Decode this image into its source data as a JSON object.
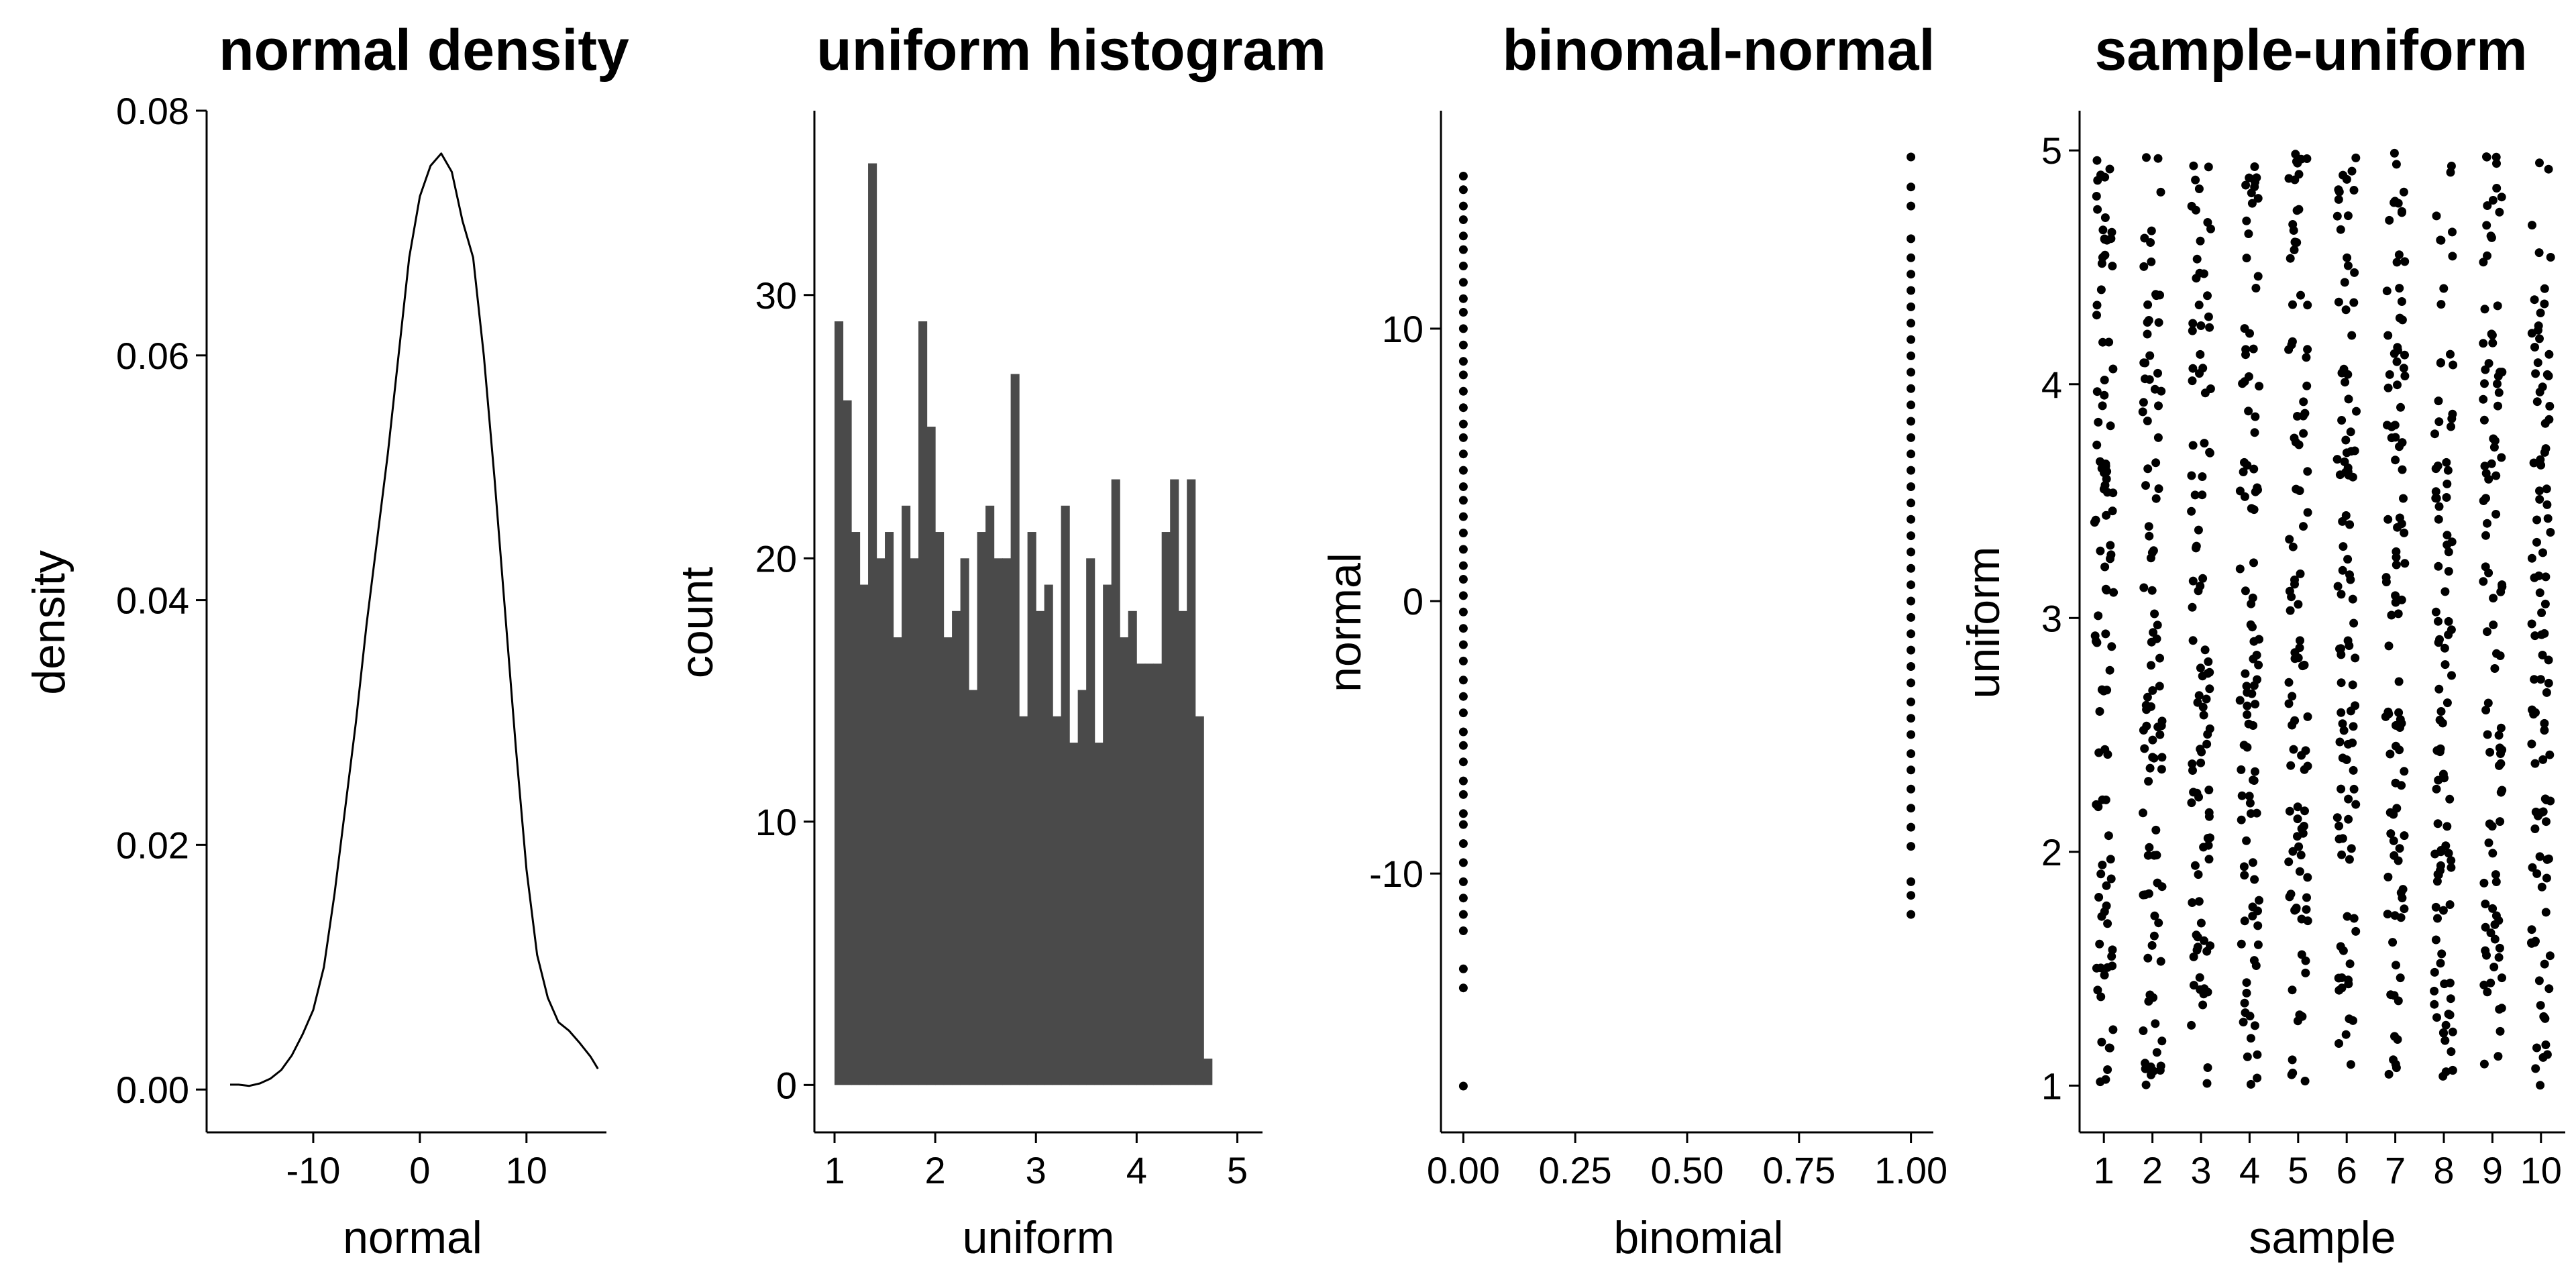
{
  "chart_data": [
    {
      "type": "line",
      "title": "normal density",
      "xlabel": "normal",
      "ylabel": "density",
      "xlim": [
        -20,
        17.5
      ],
      "ylim": [
        -0.0035,
        0.08
      ],
      "xticks": [
        -10,
        0,
        10
      ],
      "xtick_labels": [
        "-10",
        "0",
        "10"
      ],
      "yticks": [
        0,
        0.02,
        0.04,
        0.06,
        0.08
      ],
      "ytick_labels": [
        "0.00",
        "0.02",
        "0.04",
        "0.06",
        "0.08"
      ],
      "grid": false,
      "series": [
        {
          "x": [
            -17.8,
            -17,
            -16,
            -15,
            -14,
            -13,
            -12,
            -11,
            -10,
            -9,
            -8,
            -7,
            -6,
            -5,
            -4,
            -3,
            -2,
            -1,
            0,
            1,
            2,
            3,
            4,
            5,
            6,
            7,
            8,
            9,
            10,
            11,
            12,
            13,
            14,
            15,
            16,
            16.7
          ],
          "y": [
            0.0004,
            0.0004,
            0.0003,
            0.0005,
            0.0009,
            0.0016,
            0.0028,
            0.0045,
            0.0065,
            0.01,
            0.016,
            0.023,
            0.03,
            0.038,
            0.045,
            0.052,
            0.06,
            0.068,
            0.073,
            0.0755,
            0.0765,
            0.075,
            0.071,
            0.068,
            0.06,
            0.05,
            0.039,
            0.028,
            0.018,
            0.011,
            0.0075,
            0.0055,
            0.0048,
            0.0038,
            0.0027,
            0.0017
          ]
        }
      ]
    },
    {
      "type": "bar",
      "title": "uniform histogram",
      "xlabel": "uniform",
      "ylabel": "count",
      "xlim": [
        0.8,
        5.25
      ],
      "ylim": [
        -1.8,
        37
      ],
      "xticks": [
        1,
        2,
        3,
        4,
        5
      ],
      "xtick_labels": [
        "1",
        "2",
        "3",
        "4",
        "5"
      ],
      "yticks": [
        0,
        10,
        20,
        30
      ],
      "ytick_labels": [
        "0",
        "10",
        "20",
        "30"
      ],
      "grid": false,
      "bin_start": 1.0,
      "bin_width": 0.0833,
      "bar_color": "#4a4a4a",
      "values": [
        29,
        26,
        21,
        19,
        35,
        20,
        21,
        17,
        22,
        20,
        29,
        25,
        21,
        17,
        18,
        20,
        15,
        21,
        22,
        20,
        20,
        27,
        14,
        21,
        18,
        19,
        14,
        22,
        13,
        15,
        20,
        13,
        19,
        23,
        17,
        18,
        16,
        16,
        16,
        21,
        23,
        18,
        23,
        14,
        1
      ]
    },
    {
      "type": "scatter",
      "title": "binomal-normal",
      "xlabel": "binomial",
      "ylabel": "normal",
      "xlim": [
        -0.05,
        1.05
      ],
      "ylim": [
        -19.5,
        18
      ],
      "xticks": [
        0,
        0.25,
        0.5,
        0.75,
        1
      ],
      "xtick_labels": [
        "0.00",
        "0.25",
        "0.50",
        "0.75",
        "1.00"
      ],
      "yticks": [
        -10,
        0,
        10
      ],
      "ytick_labels": [
        "-10",
        "0",
        "10"
      ],
      "grid": false,
      "series": [
        {
          "x_value": 0,
          "y": [
            -17.8,
            -14.2,
            -13.5,
            -12.1,
            -11.5,
            -10.9,
            -10.3,
            -9.6,
            -8.9,
            -8.2,
            -7.8,
            -7.1,
            -6.6,
            -5.9,
            -5.3,
            -4.8,
            -4.1,
            -3.5,
            -2.9,
            -2.2,
            -1.6,
            -1.0,
            -0.4,
            0.2,
            0.8,
            1.3,
            1.9,
            2.5,
            3.1,
            3.7,
            4.2,
            4.8,
            5.4,
            6.0,
            6.5,
            7.1,
            7.7,
            8.3,
            8.8,
            9.4,
            10.0,
            10.6,
            11.1,
            11.7,
            12.3,
            12.9,
            13.4,
            14.0,
            14.5,
            15.1,
            15.6
          ]
        },
        {
          "x_value": 1,
          "y": [
            -11.5,
            -10.8,
            -10.3,
            -9.0,
            -8.3,
            -7.6,
            -6.9,
            -6.2,
            -5.6,
            -4.9,
            -4.3,
            -3.7,
            -3.0,
            -2.4,
            -1.8,
            -1.2,
            -0.6,
            0.0,
            0.6,
            1.2,
            1.8,
            2.4,
            3.0,
            3.6,
            4.2,
            4.8,
            5.4,
            6.0,
            6.6,
            7.2,
            7.8,
            8.4,
            9.0,
            9.6,
            10.2,
            10.8,
            11.4,
            12.0,
            12.6,
            13.3,
            14.5,
            15.2,
            16.3
          ]
        }
      ]
    },
    {
      "type": "scatter",
      "title": "sample-uniform",
      "xlabel": "sample",
      "ylabel": "uniform",
      "xlim": [
        0.5,
        10.5
      ],
      "ylim": [
        0.8,
        5.17
      ],
      "xticks": [
        1,
        2,
        3,
        4,
        5,
        6,
        7,
        8,
        9,
        10
      ],
      "xtick_labels": [
        "1",
        "2",
        "3",
        "4",
        "5",
        "6",
        "7",
        "8",
        "9",
        "10"
      ],
      "yticks": [
        1,
        2,
        3,
        4,
        5
      ],
      "ytick_labels": [
        "1",
        "2",
        "3",
        "4",
        "5"
      ],
      "grid": false,
      "jitter_width": 0.4,
      "points_per_sample": 100,
      "y_range": [
        1,
        5
      ]
    }
  ]
}
